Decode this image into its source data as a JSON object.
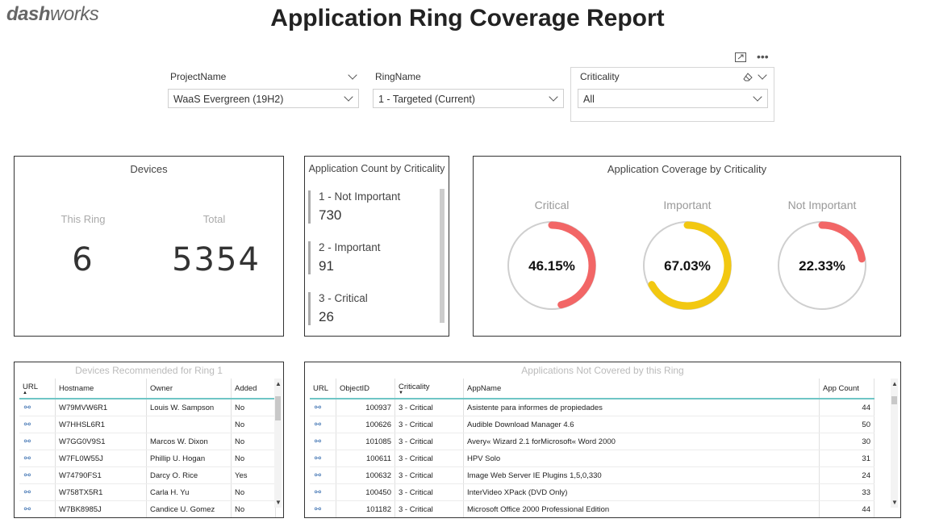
{
  "header": {
    "logo_bold": "dash",
    "logo_light": "works",
    "title": "Application Ring Coverage Report"
  },
  "filters": [
    {
      "label": "ProjectName",
      "value": "WaaS Evergreen (19H2)"
    },
    {
      "label": "RingName",
      "value": "1 - Targeted (Current)"
    },
    {
      "label": "Criticality",
      "value": "All"
    }
  ],
  "devices": {
    "title": "Devices",
    "this_ring_label": "This Ring",
    "this_ring_value": "6",
    "total_label": "Total",
    "total_value": "5354"
  },
  "app_count": {
    "title": "Application Count by Criticality",
    "items": [
      {
        "name": "1 - Not Important",
        "value": "730"
      },
      {
        "name": "2 - Important",
        "value": "91"
      },
      {
        "name": "3 - Critical",
        "value": "26"
      }
    ]
  },
  "coverage": {
    "title": "Application Coverage by Criticality",
    "gauges": [
      {
        "label": "Critical",
        "value_text": "46.15%",
        "fraction": 0.4615,
        "color": "#f26666"
      },
      {
        "label": "Important",
        "value_text": "67.03%",
        "fraction": 0.6703,
        "color": "#f2c811"
      },
      {
        "label": "Not Important",
        "value_text": "22.33%",
        "fraction": 0.2233,
        "color": "#f26666"
      }
    ]
  },
  "devices_table": {
    "title": "Devices Recommended for Ring 1",
    "columns": [
      "URL",
      "Hostname",
      "Owner",
      "Added"
    ],
    "rows": [
      [
        "W79MVW6R1",
        "Louis W. Sampson",
        "No"
      ],
      [
        "W7HHSL6R1",
        "",
        "No"
      ],
      [
        "W7GG0V9S1",
        "Marcos W. Dixon",
        "No"
      ],
      [
        "W7FL0W55J",
        "Phillip U. Hogan",
        "No"
      ],
      [
        "W74790FS1",
        "Darcy O. Rice",
        "Yes"
      ],
      [
        "W758TX5R1",
        "Carla H. Yu",
        "No"
      ],
      [
        "W7BK8985J",
        "Candice U. Gomez",
        "No"
      ]
    ]
  },
  "apps_table": {
    "title": "Applications Not Covered by this Ring",
    "columns": [
      "URL",
      "ObjectID",
      "Criticality",
      "AppName",
      "App Count"
    ],
    "rows": [
      [
        "100937",
        "3 - Critical",
        "Asistente para informes de propiedades",
        "44"
      ],
      [
        "100626",
        "3 - Critical",
        "Audible Download Manager 4.6",
        "50"
      ],
      [
        "101085",
        "3 - Critical",
        "Avery« Wizard 2.1 forMicrosoft« Word 2000",
        "30"
      ],
      [
        "100611",
        "3 - Critical",
        "HPV Solo",
        "31"
      ],
      [
        "100632",
        "3 - Critical",
        "Image Web Server IE Plugins 1,5,0,330",
        "24"
      ],
      [
        "100450",
        "3 - Critical",
        "InterVideo XPack (DVD Only)",
        "33"
      ],
      [
        "101182",
        "3 - Critical",
        "Microsoft Office 2000 Professional Edition",
        "44"
      ]
    ]
  }
}
